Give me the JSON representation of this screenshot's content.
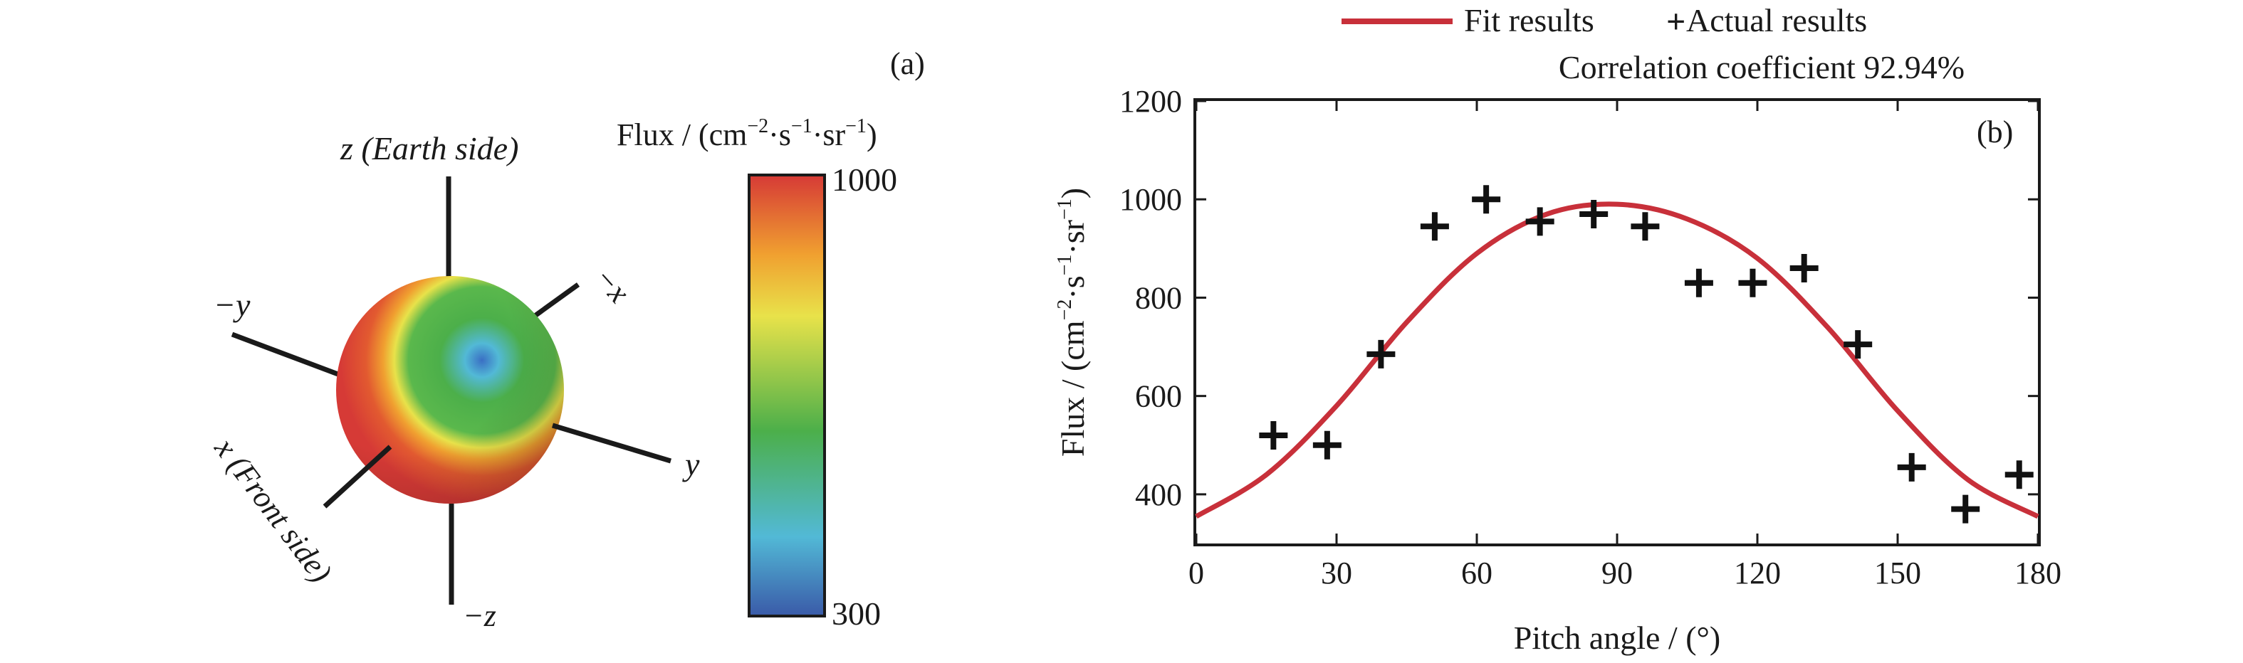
{
  "panel_a": {
    "label": "(a)",
    "axes": {
      "z": "z (Earth side)",
      "neg_z": "−z",
      "x": "x (Front side)",
      "neg_x": "−x",
      "y": "y",
      "neg_y": "−y"
    },
    "colorbar": {
      "title_prefix": "Flux / (cm",
      "title_exp1": "−2",
      "title_mid1": "·s",
      "title_exp2": "−1",
      "title_mid2": "·sr",
      "title_exp3": "−1",
      "title_suffix": ")",
      "max_label": "1000",
      "min_label": "300",
      "max": 1000,
      "min": 300
    },
    "colors": {
      "high": "#d63a36",
      "mid_high": "#f0a030",
      "mid": "#e8e24a",
      "mid_low": "#4caf4a",
      "low_mid": "#52b9d6",
      "low": "#3a5aa8"
    }
  },
  "panel_b": {
    "label": "(b)",
    "legend": {
      "fit_label": "Fit results",
      "actual_label": "Actual results",
      "marker": "+"
    },
    "correlation_text": "Correlation coefficient 92.94%",
    "colors": {
      "fit": "#c8303a",
      "points": "#111111"
    }
  },
  "chart_data": {
    "type": "scatter",
    "xlabel": "Pitch angle / (°)",
    "ylabel_prefix": "Flux / (cm",
    "ylabel_exp1": "−2",
    "ylabel_mid1": "·s",
    "ylabel_exp2": "−1",
    "ylabel_mid2": "·sr",
    "ylabel_exp3": "−1",
    "ylabel_suffix": ")",
    "xlim": [
      0,
      180
    ],
    "ylim": [
      300,
      1200
    ],
    "x_ticks": [
      0,
      30,
      60,
      90,
      120,
      150,
      180
    ],
    "y_ticks": [
      400,
      600,
      800,
      1000,
      1200
    ],
    "series": [
      {
        "name": "Fit results",
        "kind": "line",
        "x": [
          0,
          15,
          30,
          45,
          60,
          75,
          90,
          105,
          120,
          135,
          150,
          165,
          180
        ],
        "y": [
          355,
          440,
          580,
          750,
          890,
          970,
          990,
          960,
          880,
          740,
          570,
          430,
          355
        ]
      },
      {
        "name": "Actual results",
        "kind": "scatter",
        "x": [
          16.5,
          28,
          39.5,
          51,
          62,
          73.5,
          85,
          96,
          107.5,
          119,
          130,
          141.5,
          153,
          164.5,
          176
        ],
        "y": [
          520,
          500,
          685,
          945,
          1000,
          955,
          970,
          945,
          830,
          830,
          860,
          705,
          455,
          370,
          440
        ]
      }
    ]
  }
}
